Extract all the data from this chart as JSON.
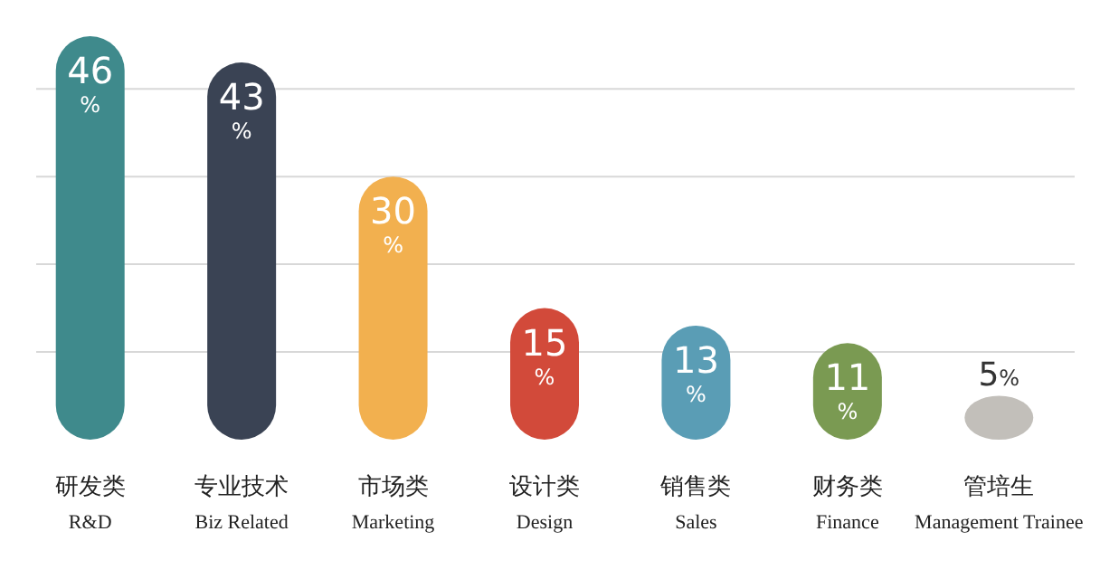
{
  "chart_data": {
    "type": "bar",
    "categories": [
      "研发类\nR&D",
      "专业技术\nBiz Related",
      "市场类\nMarketing",
      "设计类\nDesign",
      "销售类\nSales",
      "财务类\nFinance",
      "管培生\nManagement Trainee"
    ],
    "values": [
      46,
      43,
      30,
      15,
      13,
      11,
      5
    ],
    "value_labels": [
      "46$_{%}$",
      "43$_{%}$",
      "30$_{%}$",
      "15$_{%}$",
      "13$_{%}$",
      "11$_{%}$",
      "5%"
    ],
    "colors": [
      "#3f8a8c",
      "#3a4354",
      "#f2b04f",
      "#d24a3a",
      "#5a9db5",
      "#7a9a52",
      "#c2bfba"
    ],
    "yticks": [
      {
        "value": 10,
        "label": null
      },
      {
        "value": 20,
        "label": null
      },
      {
        "value": 30,
        "label": null
      },
      {
        "value": 40,
        "label": null
      }
    ],
    "grid": "y"
  }
}
